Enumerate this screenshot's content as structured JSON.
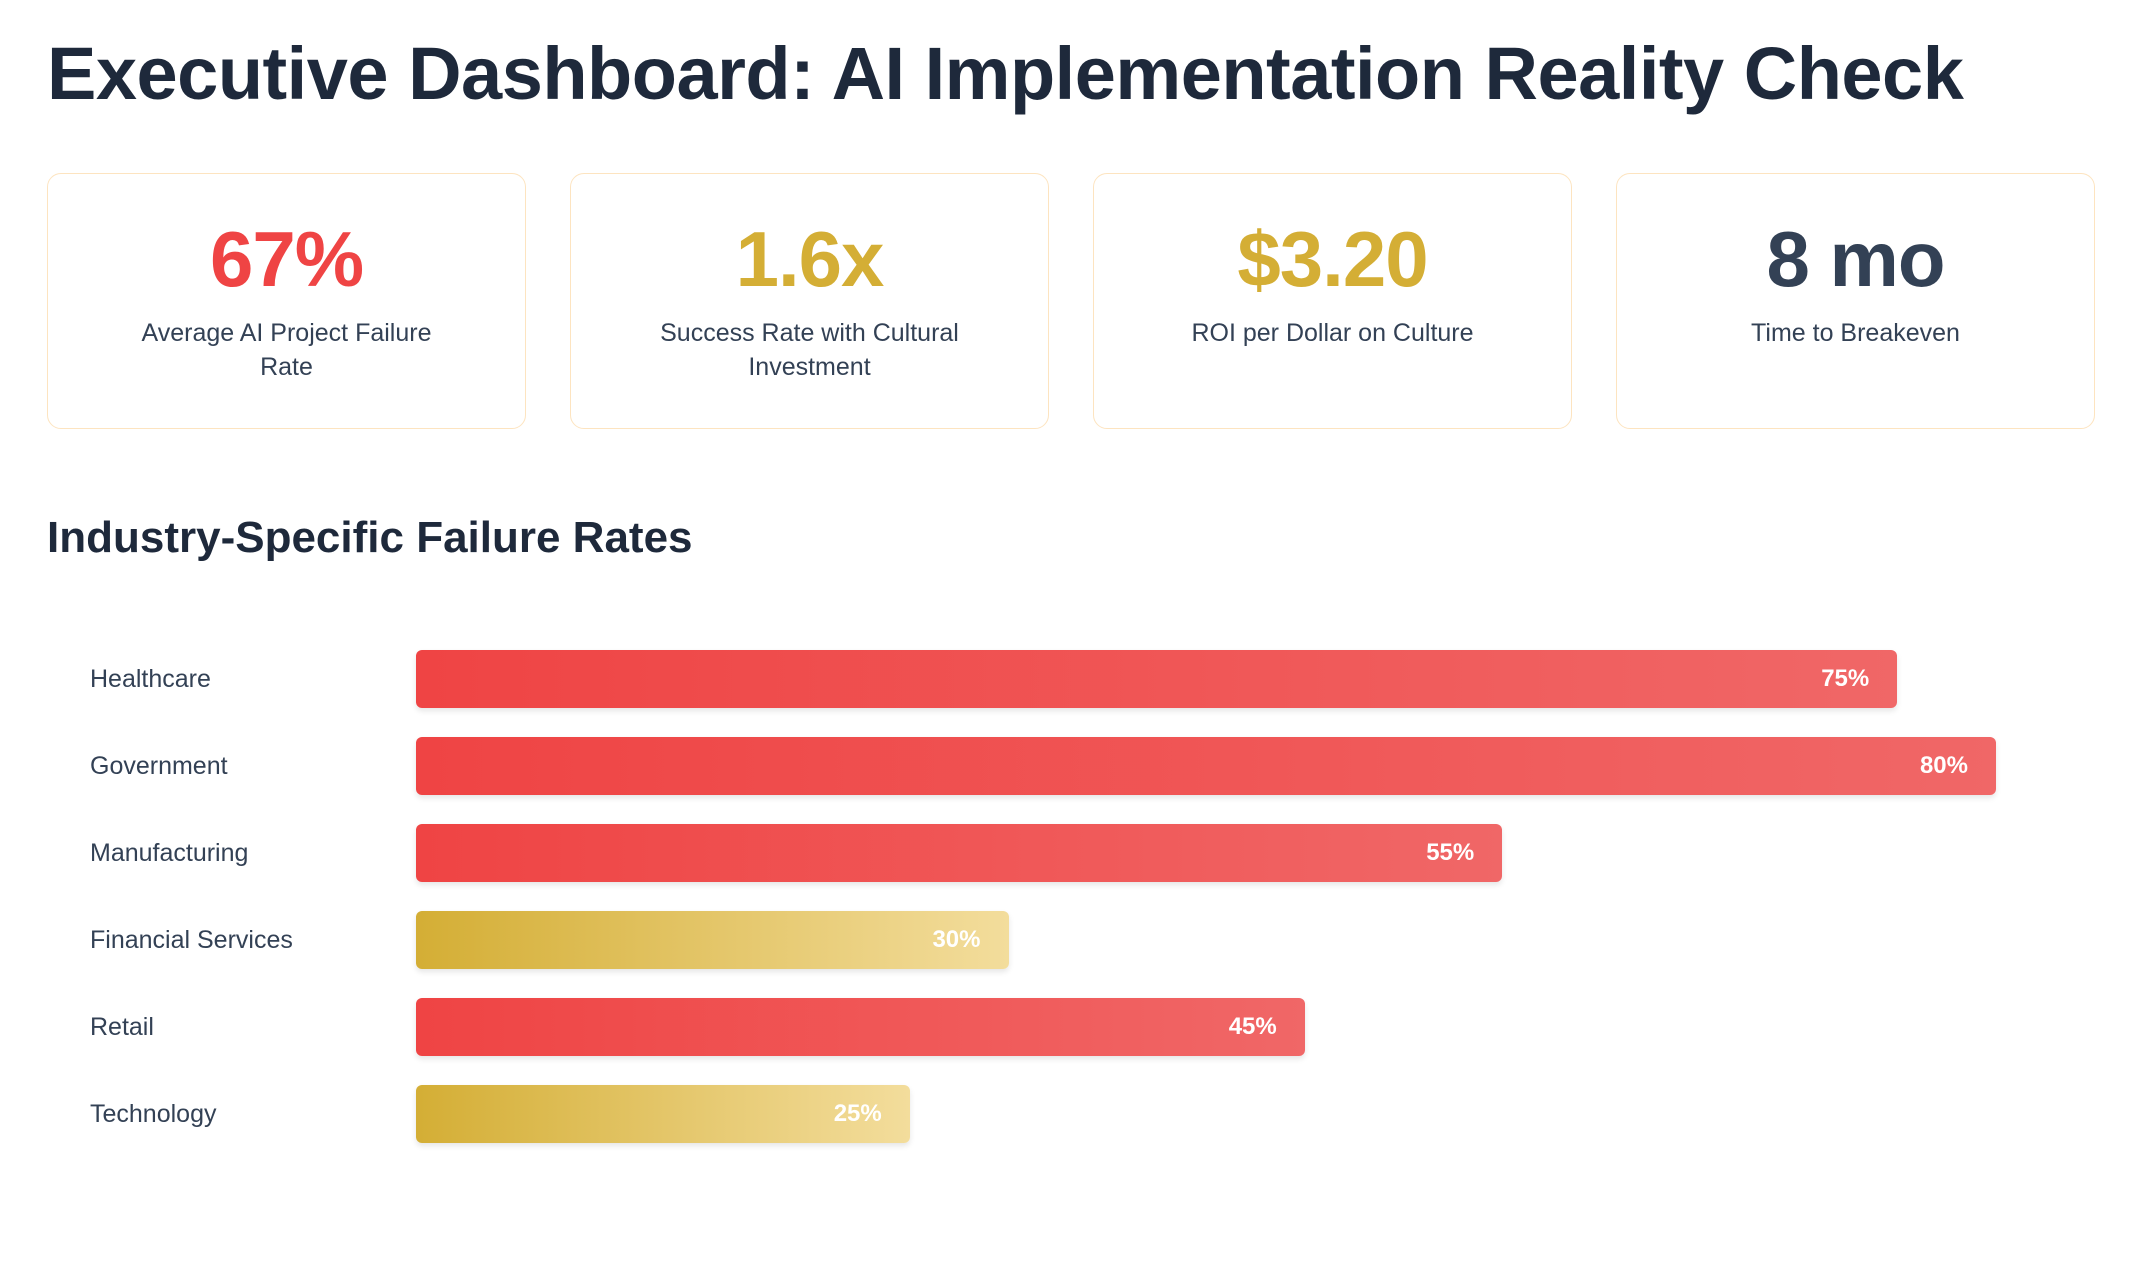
{
  "header": {
    "title": "Executive Dashboard: AI Implementation Reality Check"
  },
  "kpis": [
    {
      "value": "67%",
      "label": "Average AI Project Failure Rate",
      "color": "#ef4444"
    },
    {
      "value": "1.6x",
      "label": "Success Rate with Cultural Investment",
      "color": "#d4ae35"
    },
    {
      "value": "$3.20",
      "label": "ROI per Dollar on Culture",
      "color": "#d4ae35"
    },
    {
      "value": "8 mo",
      "label": "Time to Breakeven",
      "color": "#334155"
    }
  ],
  "section": {
    "title": "Industry-Specific Failure Rates"
  },
  "colors": {
    "high": "#ef4444",
    "low": "#d4ae35"
  },
  "chart_data": {
    "type": "bar",
    "orientation": "horizontal",
    "title": "Industry-Specific Failure Rates",
    "categories": [
      "Healthcare",
      "Government",
      "Manufacturing",
      "Financial Services",
      "Retail",
      "Technology"
    ],
    "values": [
      75,
      80,
      55,
      30,
      45,
      25
    ],
    "value_labels": [
      "75%",
      "80%",
      "55%",
      "30%",
      "45%",
      "25%"
    ],
    "bar_colors": [
      "#ef4444",
      "#ef4444",
      "#ef4444",
      "#d4ae35",
      "#ef4444",
      "#d4ae35"
    ],
    "xlim": [
      0,
      100
    ],
    "grid": false,
    "legend": "none"
  }
}
